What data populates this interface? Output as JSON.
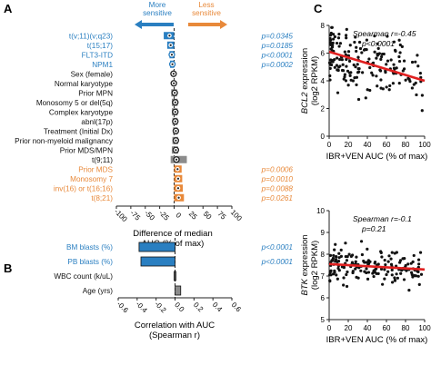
{
  "panels": {
    "a": "A",
    "b": "B",
    "c": "C"
  },
  "colors": {
    "blue": "#2a7fc1",
    "orange": "#e8893a",
    "gray": "#8c8c8c",
    "black": "#111111",
    "red": "#e02020"
  },
  "headers": {
    "more": "More\nsensitive",
    "less": "Less\nsensitive"
  },
  "chart_data": [
    {
      "type": "bar",
      "panel": "A",
      "categories": [
        "t(v;11)(v;q23)",
        "t(15;17)",
        "FLT3-ITD",
        "NPM1",
        "Sex (female)",
        "Normal karyotype",
        "Prior MPN",
        "Monosomy 5 or del(5q)",
        "Complex karyotype",
        "abnl(17p)",
        "Treatment (Initial Dx)",
        "Prior non-myeloid malignancy",
        "Prior MDS/MPN",
        "t(9;11)",
        "Prior MDS",
        "Monosomy 7",
        "inv(16) or t(16;16)",
        "t(8;21)"
      ],
      "category_colors": [
        "blue",
        "blue",
        "blue",
        "blue",
        "black",
        "black",
        "black",
        "black",
        "black",
        "black",
        "black",
        "black",
        "black",
        "black",
        "orange",
        "orange",
        "orange",
        "orange"
      ],
      "values": [
        -8,
        -6,
        -4,
        -3,
        -1,
        -0.5,
        1,
        2,
        2,
        2,
        3,
        3,
        3,
        4,
        6,
        7,
        7,
        8
      ],
      "bar_ranges": [
        [
          -18,
          0
        ],
        [
          -12,
          0
        ],
        [
          -8,
          0
        ],
        [
          -7,
          0
        ],
        [
          -2,
          0
        ],
        [
          -1,
          0
        ],
        [
          -5,
          5
        ],
        [
          -4,
          6
        ],
        [
          -4,
          6
        ],
        [
          -3,
          6
        ],
        [
          -2,
          6
        ],
        [
          -3,
          7
        ],
        [
          -4,
          7
        ],
        [
          -6,
          22
        ],
        [
          0,
          13
        ],
        [
          0,
          14
        ],
        [
          0,
          15
        ],
        [
          0,
          17
        ]
      ],
      "pvalues": [
        "p=0.0345",
        "p=0.0185",
        "p<0.0001",
        "p=0.0002",
        "",
        "",
        "",
        "",
        "",
        "",
        "",
        "",
        "",
        "",
        "p=0.0006",
        "p=0.0010",
        "p=0.0088",
        "p=0.0261"
      ],
      "xlabel": "Difference of median\nAUC (% of max)",
      "xticks": [
        "-100",
        "-75",
        "-50",
        "-25",
        "0",
        "25",
        "50",
        "75",
        "100"
      ],
      "xlim": [
        -100,
        100
      ]
    },
    {
      "type": "bar",
      "panel": "B",
      "orientation": "horizontal",
      "categories": [
        "BM blasts (%)",
        "PB blasts (%)",
        "WBC count (k/uL)",
        "Age (yrs)"
      ],
      "category_colors": [
        "blue",
        "blue",
        "black",
        "black"
      ],
      "values": [
        -0.38,
        -0.36,
        -0.01,
        0.06
      ],
      "pvalues": [
        "p<0.0001",
        "p<0.0001",
        "",
        ""
      ],
      "xlabel": "Correlation with AUC\n(Spearman r)",
      "xticks": [
        "-0.6",
        "-0.4",
        "-0.2",
        "0.0",
        "0.2",
        "0.4",
        "0.6"
      ],
      "xlim": [
        -0.6,
        0.6
      ]
    },
    {
      "type": "scatter",
      "panel": "C-top",
      "annotation": [
        "Spearman r=-0.45",
        "p<0.0001"
      ],
      "ylabel_gene": "BCL2",
      "ylabel_rest": " expression",
      "ylabel2": "(log2 RPKM)",
      "xlabel": "IBR+VEN AUC (% of max)",
      "xticks": [
        "0",
        "20",
        "40",
        "60",
        "80",
        "100"
      ],
      "yticks": [
        "0",
        "2",
        "4",
        "6",
        "8"
      ],
      "xlim": [
        0,
        100
      ],
      "ylim": [
        0,
        8
      ],
      "trend": {
        "x": [
          0,
          100
        ],
        "y": [
          6.1,
          4.0
        ]
      },
      "seed": 11,
      "n_points": 180,
      "y_spread": 1.1
    },
    {
      "type": "scatter",
      "panel": "C-bottom",
      "annotation": [
        "Spearman r=-0.1",
        "p=0.21"
      ],
      "ylabel_gene": "BTK",
      "ylabel_rest": " expression",
      "ylabel2": "(log2 RPKM)",
      "xlabel": "IBR+VEN AUC (% of max)",
      "xticks": [
        "0",
        "20",
        "40",
        "60",
        "80",
        "100"
      ],
      "yticks": [
        "5",
        "6",
        "7",
        "8",
        "9",
        "10"
      ],
      "xlim": [
        0,
        100
      ],
      "ylim": [
        5,
        10
      ],
      "trend": {
        "x": [
          0,
          100
        ],
        "y": [
          7.55,
          7.3
        ]
      },
      "seed": 29,
      "n_points": 170,
      "y_spread": 0.38
    }
  ]
}
